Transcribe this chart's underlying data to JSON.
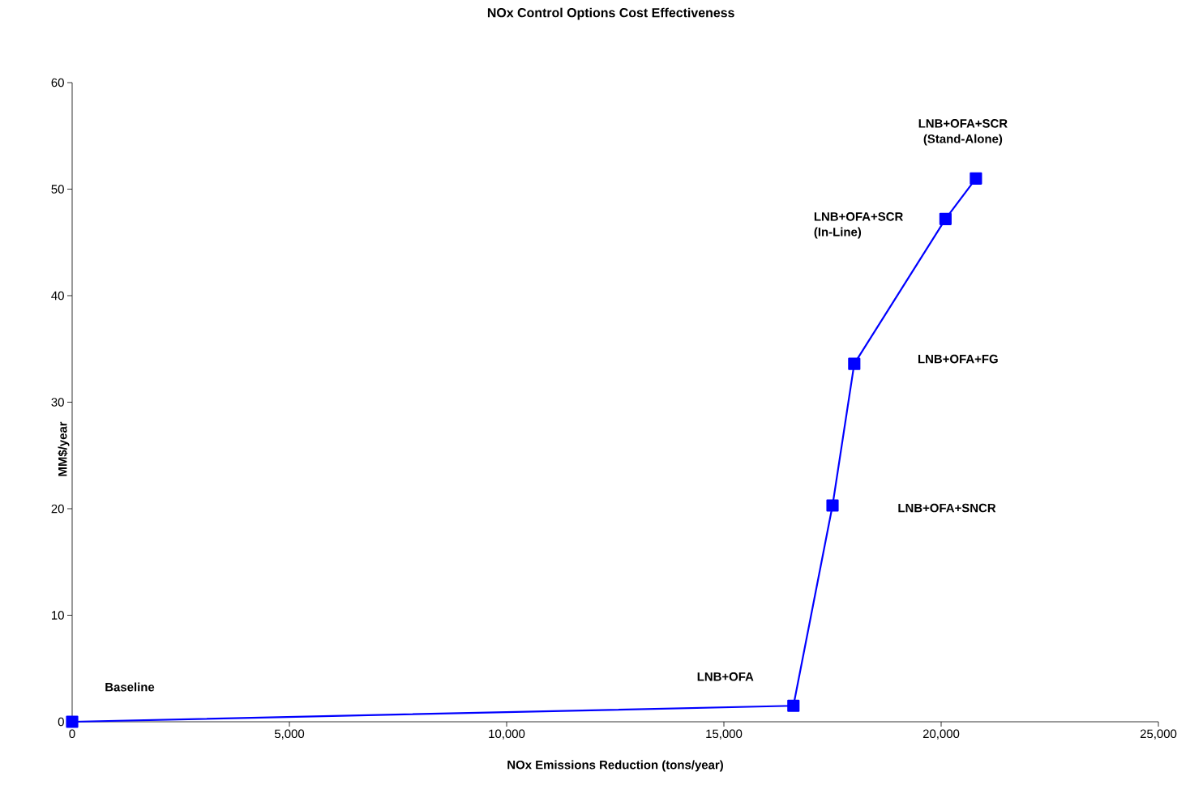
{
  "chart_data": {
    "type": "line",
    "title": "NOx Control Options Cost Effectiveness",
    "xlabel": "NOx Emissions Reduction (tons/year)",
    "ylabel": "MM$/year",
    "x": [
      0,
      16600,
      17500,
      18000,
      20100,
      20800
    ],
    "series": [
      {
        "color": "#0000ff",
        "values": [
          0,
          1.5,
          20.3,
          33.6,
          47.2,
          51.0
        ]
      }
    ],
    "marker": "square",
    "line_style": "solid",
    "grid": false,
    "xlim": [
      0,
      25000
    ],
    "xticks": [
      {
        "value": 0,
        "label": "0"
      },
      {
        "value": 5000,
        "label": "5,000"
      },
      {
        "value": 10000,
        "label": "10,000"
      },
      {
        "value": 15000,
        "label": "15,000"
      },
      {
        "value": 20000,
        "label": "20,000"
      },
      {
        "value": 25000,
        "label": "25,000"
      }
    ],
    "ylim": [
      0,
      60
    ],
    "yticks": [
      0,
      10,
      20,
      30,
      40,
      50,
      60
    ],
    "annotations": [
      "Baseline",
      "LNB+OFA",
      "LNB+OFA+SNCR",
      "LNB+OFA+FG",
      "LNB+OFA+SCR (In-Line)",
      "LNB+OFA+SCR (Stand-Alone)"
    ]
  }
}
